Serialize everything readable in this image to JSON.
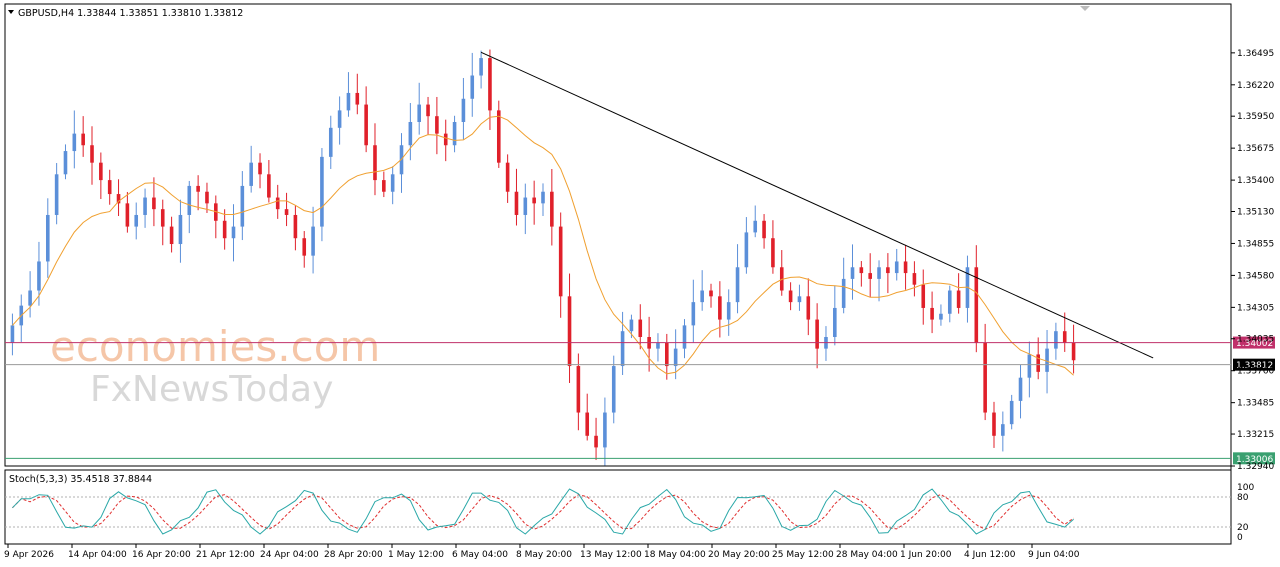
{
  "header": {
    "symbol_line": "GBPUSD,H4  1.33844 1.33851 1.33810 1.33812"
  },
  "watermark": {
    "brand_top": "economies.com",
    "brand_bottom": "FxNewsToday"
  },
  "colors": {
    "bull": "#5b8fd9",
    "bear": "#e0202a",
    "ma": "#f0a030",
    "trend": "#000000",
    "resistance": "#c0306a",
    "support": "#3aa070",
    "current": "#9a9a9a",
    "stoch_main": "#2aa8a8",
    "stoch_signal": "#e03030"
  },
  "chart_data": [
    {
      "type": "candlestick",
      "symbol": "GBPUSD",
      "timeframe": "H4",
      "last_ohlc": {
        "open": 1.33844,
        "high": 1.33851,
        "low": 1.3381,
        "close": 1.33812
      },
      "ylim": [
        1.3294,
        1.3664
      ],
      "y_ticks": [
        "1.36495",
        "1.36220",
        "1.35950",
        "1.35675",
        "1.35400",
        "1.35130",
        "1.34855",
        "1.34580",
        "1.34305",
        "1.34035",
        "1.33760",
        "1.33485",
        "1.33215",
        "1.32940"
      ],
      "x_ticks": [
        "9 Apr 2026",
        "14 Apr 04:00",
        "16 Apr 20:00",
        "21 Apr 12:00",
        "24 Apr 04:00",
        "28 Apr 20:00",
        "1 May 12:00",
        "6 May 04:00",
        "8 May 20:00",
        "13 May 12:00",
        "18 May 04:00",
        "20 May 20:00",
        "25 May 12:00",
        "28 May 04:00",
        "1 Jun 20:00",
        "4 Jun 12:00",
        "9 Jun 04:00"
      ],
      "closes": [
        1.3415,
        1.3432,
        1.3445,
        1.347,
        1.351,
        1.3545,
        1.3565,
        1.358,
        1.357,
        1.3555,
        1.354,
        1.3528,
        1.352,
        1.35,
        1.351,
        1.3525,
        1.3515,
        1.35,
        1.3485,
        1.351,
        1.3535,
        1.353,
        1.352,
        1.3505,
        1.349,
        1.35,
        1.3535,
        1.3555,
        1.3545,
        1.3525,
        1.3515,
        1.351,
        1.349,
        1.3475,
        1.35,
        1.356,
        1.3585,
        1.36,
        1.3615,
        1.3605,
        1.357,
        1.354,
        1.353,
        1.3545,
        1.357,
        1.359,
        1.3605,
        1.3595,
        1.358,
        1.357,
        1.359,
        1.361,
        1.363,
        1.3645,
        1.36,
        1.3555,
        1.353,
        1.351,
        1.3525,
        1.352,
        1.353,
        1.35,
        1.344,
        1.338,
        1.334,
        1.332,
        1.331,
        1.334,
        1.338,
        1.341,
        1.342,
        1.3405,
        1.3395,
        1.34,
        1.338,
        1.3395,
        1.3415,
        1.3435,
        1.3445,
        1.344,
        1.342,
        1.3435,
        1.3465,
        1.3495,
        1.3505,
        1.349,
        1.3465,
        1.3445,
        1.3435,
        1.344,
        1.342,
        1.3395,
        1.3405,
        1.343,
        1.3455,
        1.3465,
        1.346,
        1.3455,
        1.3465,
        1.346,
        1.347,
        1.346,
        1.345,
        1.343,
        1.342,
        1.3425,
        1.3445,
        1.343,
        1.3465,
        1.34,
        1.334,
        1.332,
        1.333,
        1.335,
        1.337,
        1.339,
        1.3375,
        1.3395,
        1.341,
        1.34,
        1.3385
      ],
      "ma_period_note": "",
      "trendline": {
        "from": [
          "8 May 20:00",
          1.365
        ],
        "to": [
          "after 9 Jun 04:00",
          1.3387
        ]
      },
      "hlines": [
        {
          "name": "resistance",
          "value": 1.34002,
          "label": "1.34002"
        },
        {
          "name": "current",
          "value": 1.33812,
          "label": "1.33812"
        },
        {
          "name": "support",
          "value": 1.33006,
          "label": "1.33006"
        }
      ]
    },
    {
      "type": "line",
      "title": "Stoch(5,3,3) 35.4518 37.8844",
      "series": [
        {
          "name": "main",
          "last": 35.4518
        },
        {
          "name": "signal",
          "last": 37.8844
        }
      ],
      "ylim": [
        0,
        100
      ],
      "levels": [
        20,
        80
      ],
      "y_ticks": [
        "100",
        "80",
        "20",
        "0"
      ]
    }
  ]
}
